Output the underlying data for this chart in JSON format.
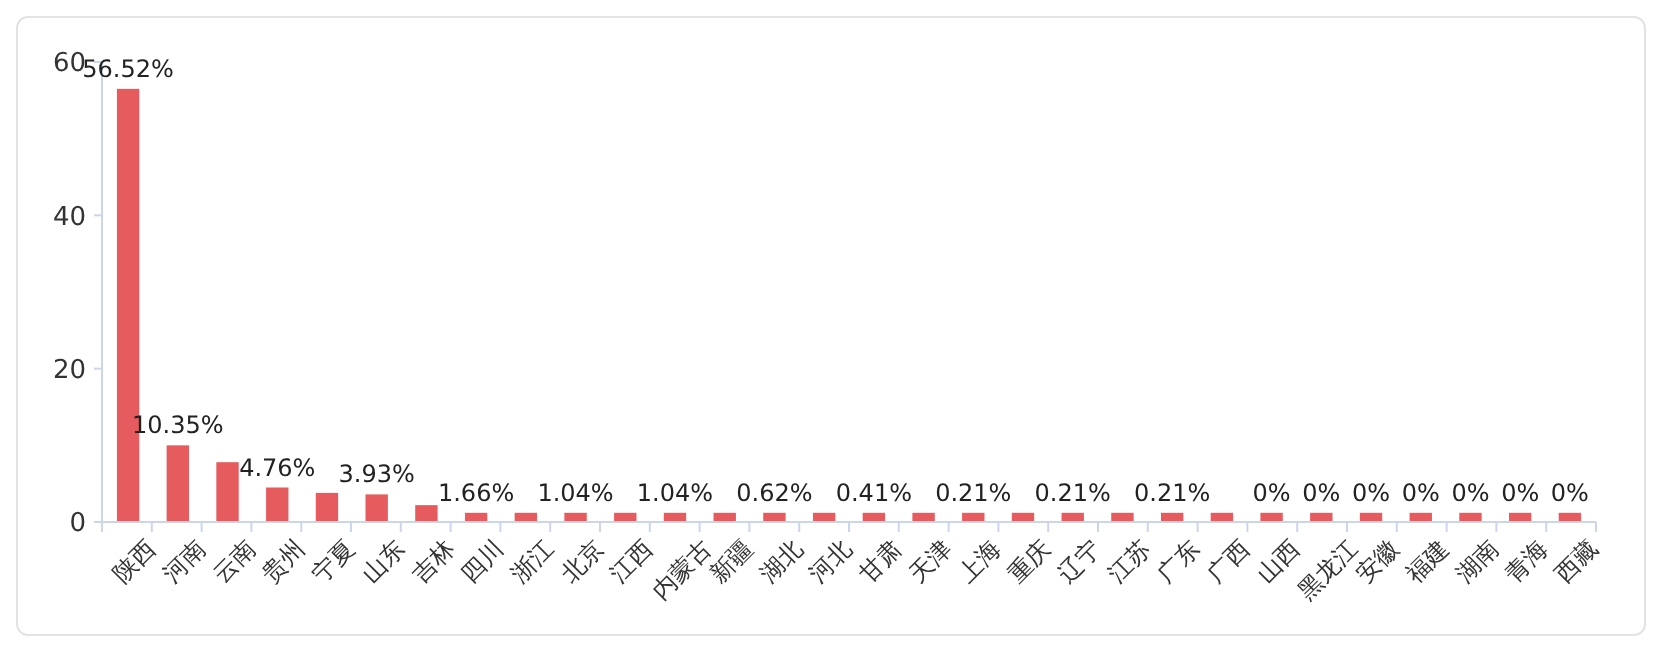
{
  "chart_data": {
    "type": "bar",
    "categories": [
      "陕西",
      "河南",
      "云南",
      "贵州",
      "宁夏",
      "山东",
      "吉林",
      "四川",
      "浙江",
      "北京",
      "江西",
      "内蒙古",
      "新疆",
      "湖北",
      "河北",
      "甘肃",
      "天津",
      "上海",
      "重庆",
      "辽宁",
      "江苏",
      "广东",
      "广西",
      "山西",
      "黑龙江",
      "安徽",
      "福建",
      "湖南",
      "青海",
      "西藏"
    ],
    "values": [
      56.5,
      10,
      7.8,
      4.5,
      3.8,
      3.6,
      2.2,
      1.2,
      1.2,
      1.2,
      1.2,
      1.2,
      1.2,
      1.2,
      1.2,
      1.2,
      1.2,
      1.2,
      1.2,
      1.2,
      1.2,
      1.2,
      1.2,
      1.2,
      1.2,
      1.2,
      1.2,
      1.2,
      1.2,
      1.2
    ],
    "annotations": [
      {
        "text": "56.52%",
        "x": "陕西",
        "y": 56.5
      },
      {
        "text": "10.35%",
        "x": "河南",
        "y": 10
      },
      {
        "text": "4.76%",
        "x": "贵州",
        "y": 4.5
      },
      {
        "text": "3.93%",
        "x": "山东",
        "y": 3.6
      },
      {
        "text": "1.66%",
        "x": "四川",
        "y": 1.2
      },
      {
        "text": "1.04%",
        "x": "北京",
        "y": 1.2
      },
      {
        "text": "1.04%",
        "x": "内蒙古",
        "y": 1.2
      },
      {
        "text": "0.62%",
        "x": "湖北",
        "y": 1.2
      },
      {
        "text": "0.41%",
        "x": "甘肃",
        "y": 1.2
      },
      {
        "text": "0.21%",
        "x": "上海",
        "y": 1.2
      },
      {
        "text": "0.21%",
        "x": "辽宁",
        "y": 1.2
      },
      {
        "text": "0.21%",
        "x": "广东",
        "y": 1.2
      },
      {
        "text": "0%",
        "x": "山西",
        "y": 1.2
      },
      {
        "text": "0%",
        "x": "黑龙江",
        "y": 1.2
      },
      {
        "text": "0%",
        "x": "安徽",
        "y": 1.2
      },
      {
        "text": "0%",
        "x": "福建",
        "y": 1.2
      },
      {
        "text": "0%",
        "x": "湖南",
        "y": 1.2
      },
      {
        "text": "0%",
        "x": "青海",
        "y": 1.2
      },
      {
        "text": "0%",
        "x": "西藏",
        "y": 1.2
      }
    ],
    "color": "#e55b5e",
    "ylim": [
      0,
      60
    ],
    "yticks": [
      0,
      20,
      40,
      60
    ],
    "grid": false
  }
}
